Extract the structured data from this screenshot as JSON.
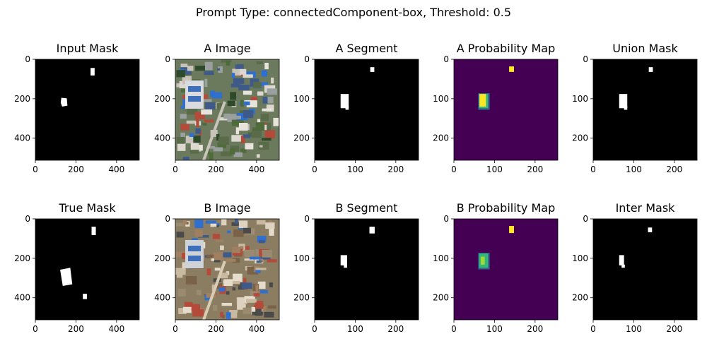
{
  "suptitle": "Prompt Type: connectedComponent-box,  Threshold: 0.5",
  "colors": {
    "mask_bg": "#000000",
    "mask_fg": "#ffffff",
    "prob_bg": "#440154",
    "prob_mid": "#35b779",
    "prob_high": "#fde725",
    "prob_low": "#31688e"
  },
  "chart_data": [
    {
      "type": "heatmap",
      "title": "Input Mask",
      "kind": "mask",
      "xlim": [
        0,
        512
      ],
      "ylim": [
        512,
        0
      ],
      "xticks": [
        "0",
        "200",
        "400"
      ],
      "yticks": [
        "0",
        "200",
        "400"
      ]
    },
    {
      "type": "heatmap",
      "title": "A Image",
      "kind": "image",
      "xlim": [
        0,
        512
      ],
      "ylim": [
        512,
        0
      ],
      "xticks": [
        "0",
        "200",
        "400"
      ],
      "yticks": [
        "0",
        "200",
        "400"
      ]
    },
    {
      "type": "heatmap",
      "title": "A Segment",
      "kind": "mask",
      "xlim": [
        0,
        256
      ],
      "ylim": [
        256,
        0
      ],
      "xticks": [
        "0",
        "100",
        "200"
      ],
      "yticks": [
        "0",
        "100",
        "200"
      ]
    },
    {
      "type": "heatmap",
      "title": "A Probability Map",
      "kind": "prob",
      "xlim": [
        0,
        256
      ],
      "ylim": [
        256,
        0
      ],
      "xticks": [
        "0",
        "100",
        "200"
      ],
      "yticks": [
        "0",
        "100",
        "200"
      ]
    },
    {
      "type": "heatmap",
      "title": "Union Mask",
      "kind": "mask",
      "xlim": [
        0,
        256
      ],
      "ylim": [
        256,
        0
      ],
      "xticks": [
        "0",
        "100",
        "200"
      ],
      "yticks": [
        "0",
        "100",
        "200"
      ]
    },
    {
      "type": "heatmap",
      "title": "True Mask",
      "kind": "mask",
      "xlim": [
        0,
        512
      ],
      "ylim": [
        512,
        0
      ],
      "xticks": [
        "0",
        "200",
        "400"
      ],
      "yticks": [
        "0",
        "200",
        "400"
      ]
    },
    {
      "type": "heatmap",
      "title": "B Image",
      "kind": "image",
      "xlim": [
        0,
        512
      ],
      "ylim": [
        512,
        0
      ],
      "xticks": [
        "0",
        "200",
        "400"
      ],
      "yticks": [
        "0",
        "200",
        "400"
      ]
    },
    {
      "type": "heatmap",
      "title": "B Segment",
      "kind": "mask",
      "xlim": [
        0,
        256
      ],
      "ylim": [
        256,
        0
      ],
      "xticks": [
        "0",
        "100",
        "200"
      ],
      "yticks": [
        "0",
        "100",
        "200"
      ]
    },
    {
      "type": "heatmap",
      "title": "B Probability Map",
      "kind": "prob",
      "xlim": [
        0,
        256
      ],
      "ylim": [
        256,
        0
      ],
      "xticks": [
        "0",
        "100",
        "200"
      ],
      "yticks": [
        "0",
        "100",
        "200"
      ]
    },
    {
      "type": "heatmap",
      "title": "Inter Mask",
      "kind": "mask",
      "xlim": [
        0,
        256
      ],
      "ylim": [
        256,
        0
      ],
      "xticks": [
        "0",
        "100",
        "200"
      ],
      "yticks": [
        "0",
        "100",
        "200"
      ]
    }
  ]
}
